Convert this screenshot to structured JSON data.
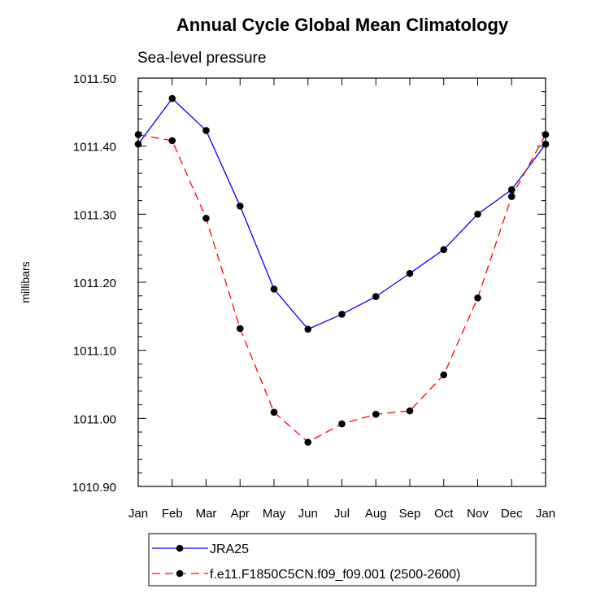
{
  "chart_data": {
    "type": "line",
    "title": "Annual Cycle Global Mean Climatology",
    "subtitle": "Sea-level pressure",
    "xlabel": "",
    "ylabel": "millibars",
    "categories": [
      "Jan",
      "Feb",
      "Mar",
      "Apr",
      "May",
      "Jun",
      "Jul",
      "Aug",
      "Sep",
      "Oct",
      "Nov",
      "Dec",
      "Jan"
    ],
    "ylim": [
      1010.9,
      1011.5
    ],
    "yticks": [
      "1010.90",
      "1011.00",
      "1011.10",
      "1011.20",
      "1011.30",
      "1011.40",
      "1011.50"
    ],
    "series": [
      {
        "name": "JRA25",
        "color": "#0000ff",
        "dash": "solid",
        "values": [
          1011.403,
          1011.47,
          1011.423,
          1011.312,
          1011.19,
          1011.131,
          1011.153,
          1011.179,
          1011.213,
          1011.248,
          1011.3,
          1011.336,
          1011.403
        ]
      },
      {
        "name": "f.e11.F1850C5CN.f09_f09.001 (2500-2600)",
        "color": "#ff0000",
        "dash": "dashed",
        "values": [
          1011.417,
          1011.408,
          1011.294,
          1011.132,
          1011.009,
          1010.965,
          1010.992,
          1011.006,
          1011.011,
          1011.064,
          1011.177,
          1011.326,
          1011.417
        ]
      }
    ],
    "marker_color": "#000000",
    "legend_position": "bottom"
  }
}
